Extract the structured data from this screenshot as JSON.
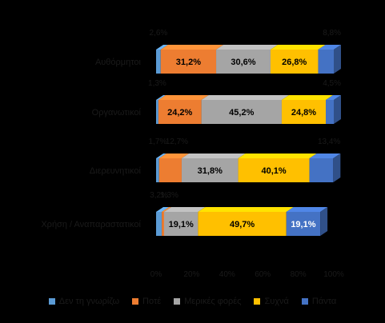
{
  "chart_data": {
    "type": "bar",
    "orientation": "horizontal",
    "stacked": "percent",
    "three_d": true,
    "categories": [
      "Αυθόρμητοι",
      "Οργανωτικοί",
      "Διερευνητικοί",
      "Χρήση / Αναπαραστατικοί"
    ],
    "series": [
      {
        "name": "Δεν τη γνωρίζω",
        "color": "#5b9bd5",
        "values": [
          2.6,
          1.3,
          1.7,
          3.2
        ],
        "labels": [
          "2,6%",
          "1,3%",
          "1,7%",
          "3,2%"
        ]
      },
      {
        "name": "Ποτέ",
        "color": "#ed7d31",
        "values": [
          31.2,
          24.2,
          12.7,
          1.3
        ],
        "labels": [
          "31,2%",
          "24,2%",
          "12,7%",
          "1,3%"
        ]
      },
      {
        "name": "Μερικές φορές",
        "color": "#a5a5a5",
        "values": [
          30.6,
          45.2,
          31.8,
          19.1
        ],
        "labels": [
          "30,6%",
          "45,2%",
          "31,8%",
          "19,1%"
        ]
      },
      {
        "name": "Συχνά",
        "color": "#ffc000",
        "values": [
          26.8,
          24.8,
          40.1,
          49.7
        ],
        "labels": [
          "26,8%",
          "24,8%",
          "40,1%",
          "49,7%"
        ]
      },
      {
        "name": "Πάντα",
        "color": "#4472c4",
        "values": [
          8.8,
          4.5,
          13.4,
          19.1
        ],
        "labels": [
          "8,8%",
          "4,5%",
          "13,4%",
          "19,1%"
        ]
      }
    ],
    "x_ticks": [
      "0%",
      "20%",
      "40%",
      "60%",
      "80%",
      "100%"
    ],
    "xlim": [
      0,
      100
    ],
    "legend_position": "bottom",
    "grid": false
  }
}
